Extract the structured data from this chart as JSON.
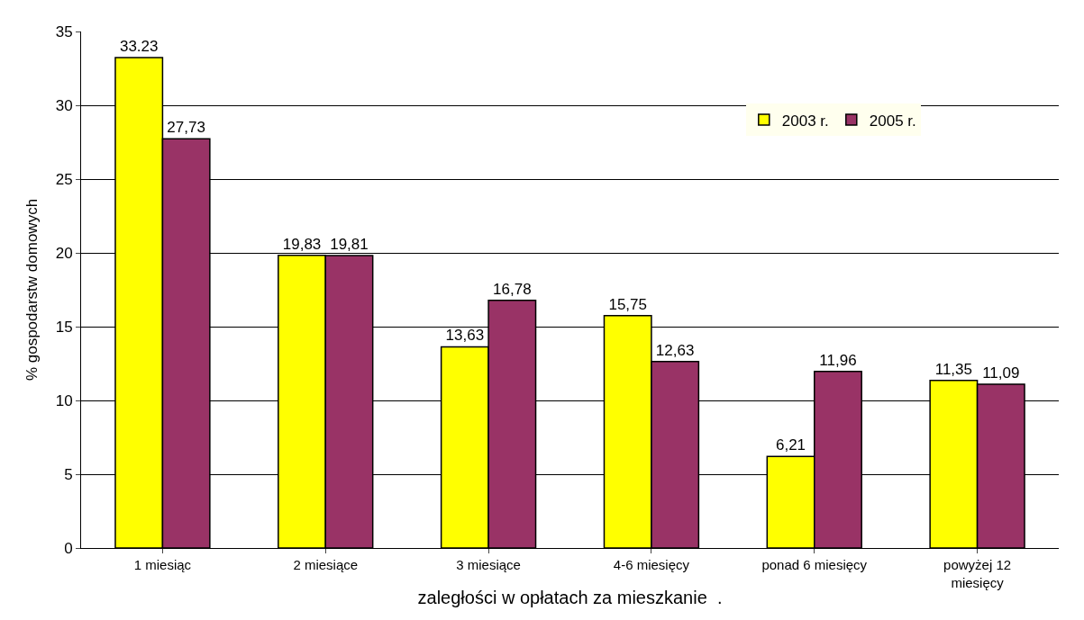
{
  "chart_data": {
    "type": "bar",
    "xlabel": "zaległości w opłatach za mieszkanie  .",
    "ylabel": "% gospodarstw domowych",
    "categories": [
      "1 miesiąc",
      "2 miesiące",
      "3 miesiące",
      "4-6 miesięcy",
      "ponad 6 miesięcy",
      "powyżej 12 miesięcy"
    ],
    "series": [
      {
        "name": "2003 r.",
        "color": "#ffff00",
        "values": [
          33.23,
          19.83,
          13.63,
          15.75,
          6.21,
          11.35
        ],
        "value_labels": [
          "33.23",
          "19,83",
          "13,63",
          "15,75",
          "6,21",
          "11,35"
        ]
      },
      {
        "name": "2005 r.",
        "color": "#993366",
        "values": [
          27.73,
          19.81,
          16.78,
          12.63,
          11.96,
          11.09
        ],
        "value_labels": [
          "27,73",
          "19,81",
          "16,78",
          "12,63",
          "11,96",
          "11,09"
        ]
      }
    ],
    "ylim": [
      0,
      35
    ],
    "yticks": [
      0,
      5,
      10,
      15,
      20,
      25,
      30,
      35
    ],
    "grid": "y",
    "legend": "top right"
  }
}
